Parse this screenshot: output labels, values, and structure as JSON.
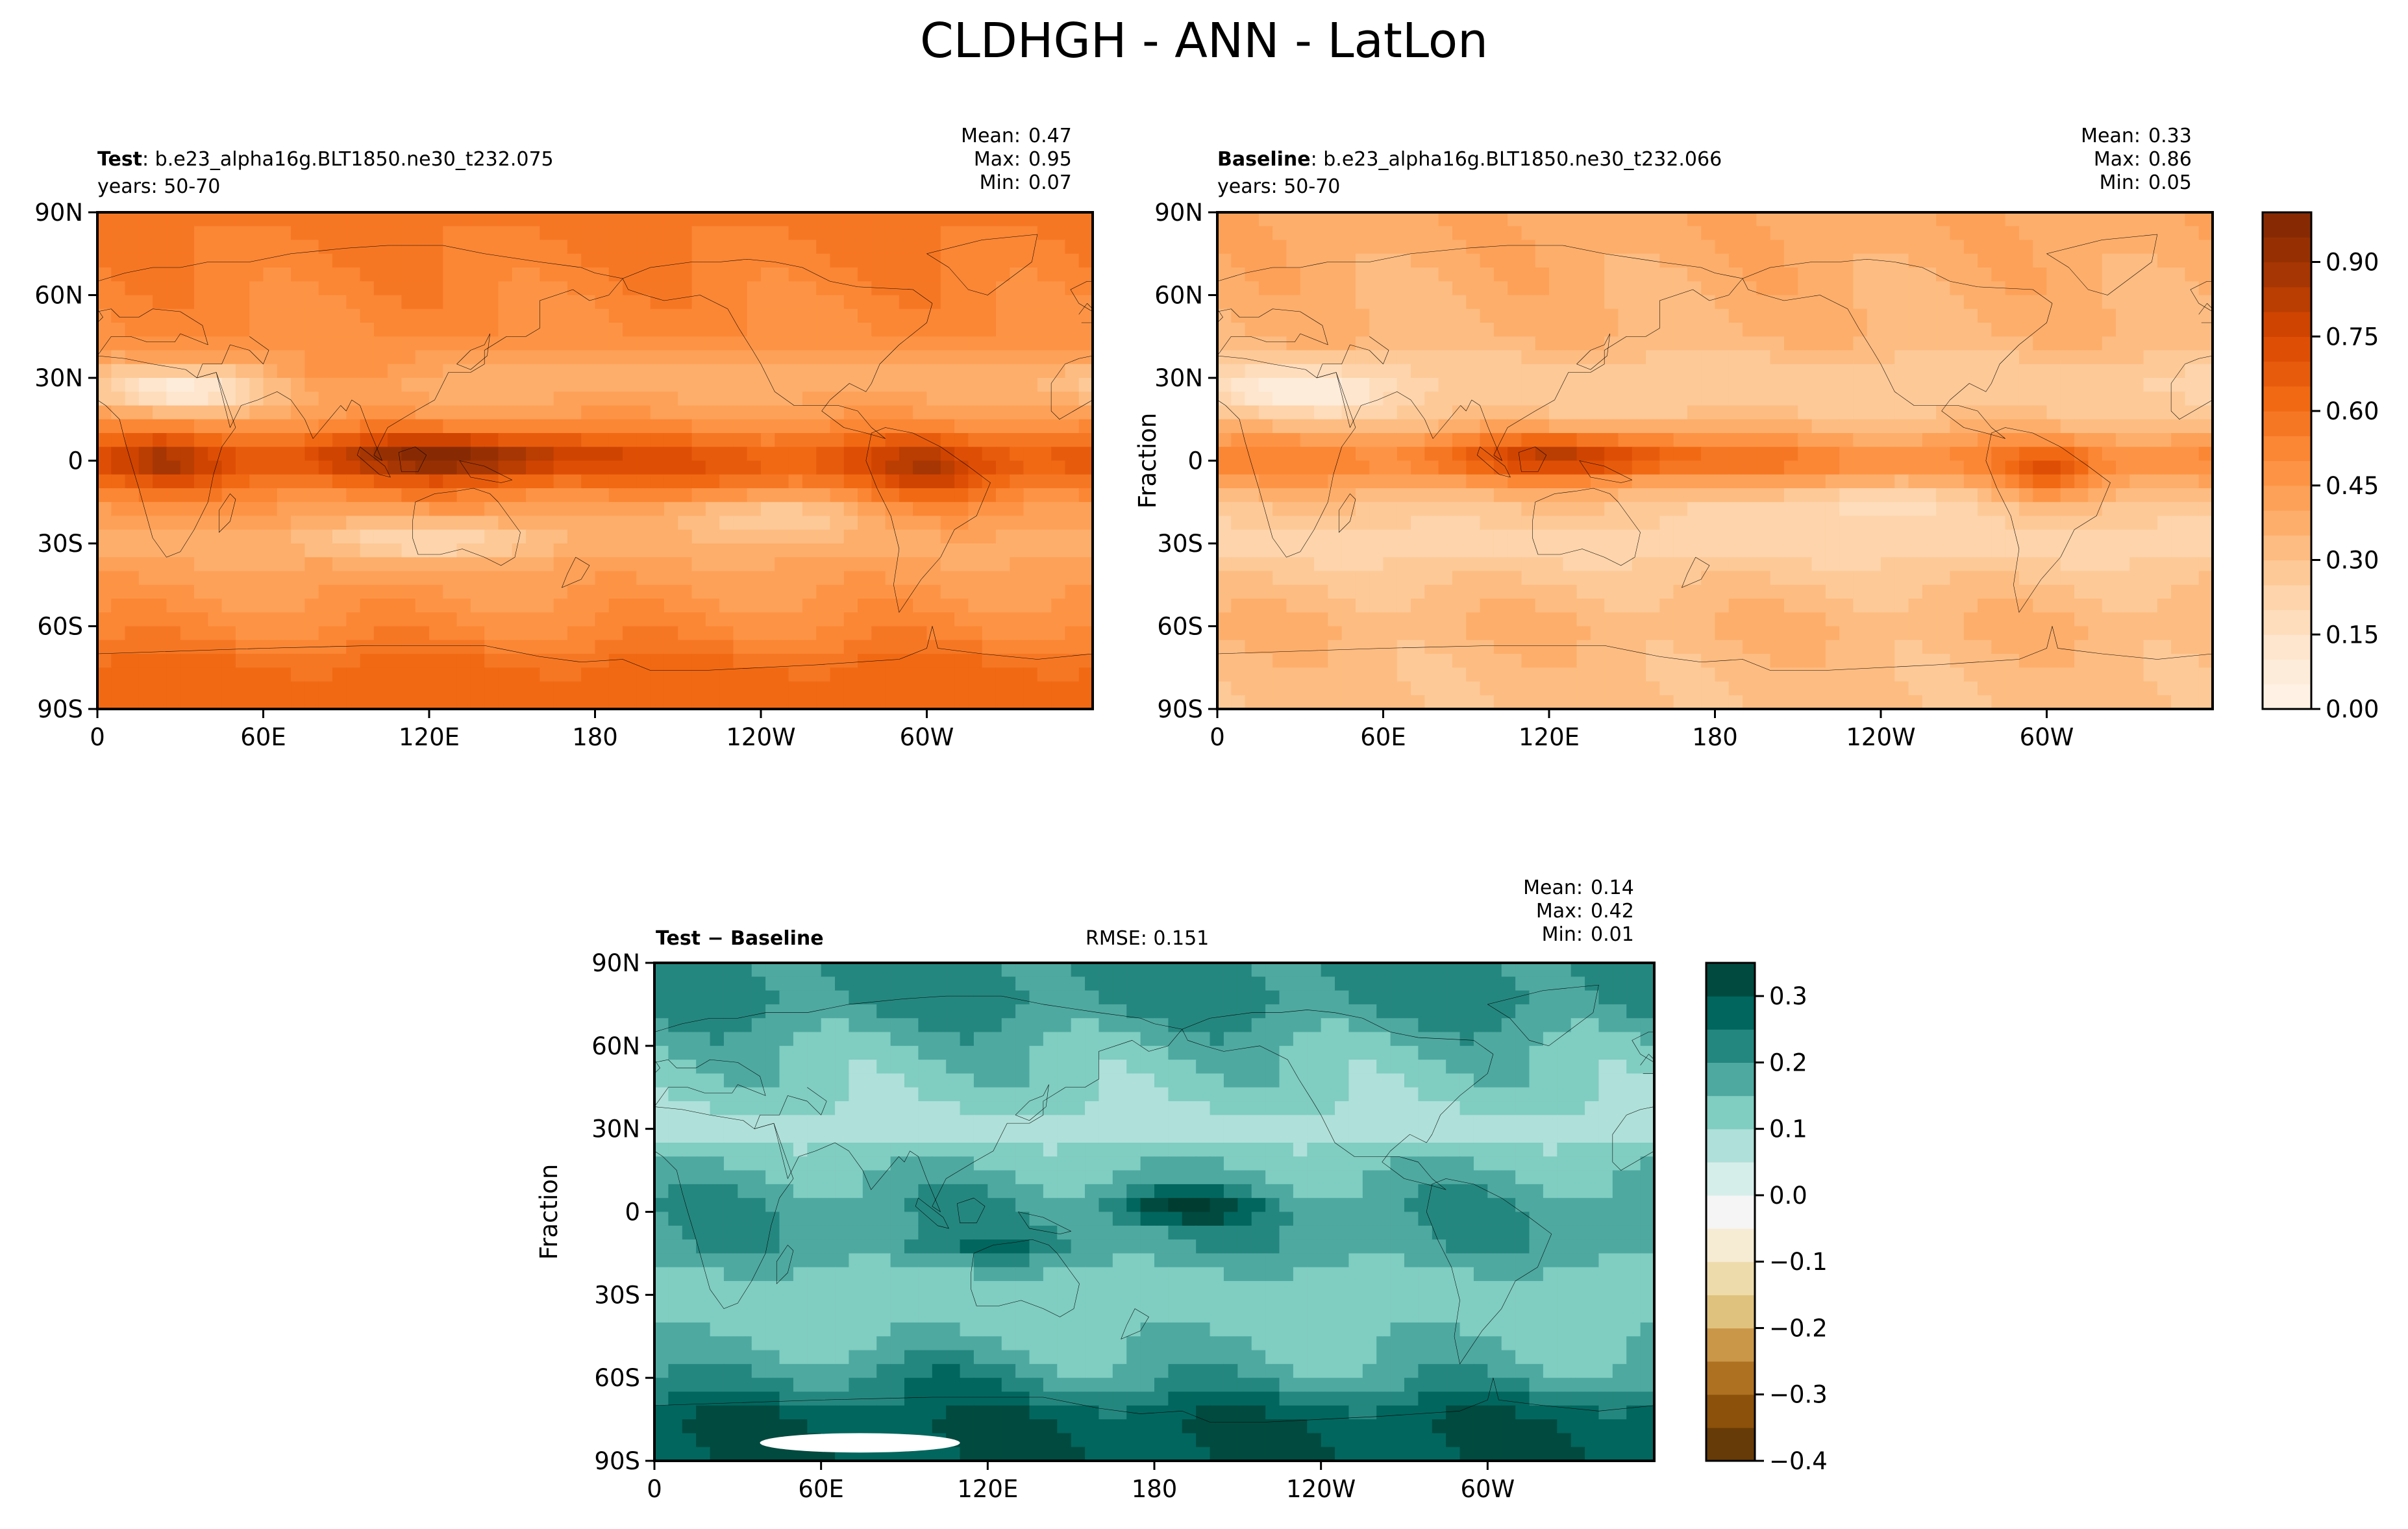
{
  "title": "CLDHGH - ANN - LatLon",
  "colors": {
    "orange_scale": [
      "#fff5eb",
      "#fee6ce",
      "#fdd0a2",
      "#fdae6b",
      "#fd8d3c",
      "#f16913",
      "#d94801",
      "#a63603",
      "#7f2704"
    ],
    "diff_scale": [
      "#543005",
      "#8c510a",
      "#bf812d",
      "#dfc27d",
      "#f6e8c3",
      "#f5f5f5",
      "#c7eae5",
      "#80cdc1",
      "#35978f",
      "#01665e",
      "#003c30"
    ],
    "land_outline": "#000000",
    "missing": "#ffffff"
  },
  "panels": {
    "test": {
      "label_bold": "Test",
      "label_rest": ": b.e23_alpha16g.BLT1850.ne30_t232.075",
      "years": "years: 50-70",
      "mean_label": "Mean:",
      "mean": "0.47",
      "max_label": "Max:",
      "max": "0.95",
      "min_label": "Min:",
      "min": "0.07"
    },
    "baseline": {
      "label_bold": "Baseline",
      "label_rest": ": b.e23_alpha16g.BLT1850.ne30_t232.066",
      "years": "years: 50-70",
      "mean_label": "Mean:",
      "mean": "0.33",
      "max_label": "Max:",
      "max": "0.86",
      "min_label": "Min:",
      "min": "0.05"
    },
    "diff": {
      "label": "Test − Baseline",
      "rmse": "RMSE: 0.151",
      "mean_label": "Mean:",
      "mean": "0.14",
      "max_label": "Max:",
      "max": "0.42",
      "min_label": "Min:",
      "min": "0.01"
    }
  },
  "chart_data": [
    {
      "type": "heatmap",
      "name": "Test",
      "x_ticks": [
        "0",
        "60E",
        "120E",
        "180",
        "120W",
        "60W"
      ],
      "y_ticks": [
        "90N",
        "60N",
        "30N",
        "0",
        "30S",
        "60S",
        "90S"
      ],
      "xlim": [
        0,
        360
      ],
      "ylim": [
        -90,
        90
      ],
      "lat_profile": [
        [
          -90,
          0.62
        ],
        [
          -75,
          0.62
        ],
        [
          -60,
          0.5
        ],
        [
          -45,
          0.44
        ],
        [
          -30,
          0.38
        ],
        [
          -15,
          0.48
        ],
        [
          0,
          0.72
        ],
        [
          15,
          0.45
        ],
        [
          30,
          0.35
        ],
        [
          45,
          0.5
        ],
        [
          60,
          0.52
        ],
        [
          75,
          0.55
        ],
        [
          90,
          0.56
        ]
      ],
      "blobs": [
        {
          "lon": 130,
          "lat": 2,
          "rlon": 45,
          "rlat": 8,
          "amp": 0.28
        },
        {
          "lon": 25,
          "lat": 0,
          "rlon": 18,
          "rlat": 10,
          "amp": 0.15
        },
        {
          "lon": 300,
          "lat": -5,
          "rlon": 20,
          "rlat": 12,
          "amp": 0.15
        },
        {
          "lon": 90,
          "lat": 32,
          "rlon": 25,
          "rlat": 6,
          "amp": 0.12
        },
        {
          "lon": 30,
          "lat": 25,
          "rlon": 30,
          "rlat": 8,
          "amp": -0.3
        },
        {
          "lon": 120,
          "lat": -28,
          "rlon": 40,
          "rlat": 8,
          "amp": -0.2
        },
        {
          "lon": 240,
          "lat": -20,
          "rlon": 40,
          "rlat": 8,
          "amp": -0.18
        }
      ]
    },
    {
      "type": "heatmap",
      "name": "Baseline",
      "x_ticks": [
        "0",
        "60E",
        "120E",
        "180",
        "120W",
        "60W"
      ],
      "y_ticks": [
        "90N",
        "60N",
        "30N",
        "0",
        "30S",
        "60S",
        "90S"
      ],
      "ylabel": "Fraction",
      "xlim": [
        0,
        360
      ],
      "ylim": [
        -90,
        90
      ],
      "lat_profile": [
        [
          -90,
          0.3
        ],
        [
          -75,
          0.32
        ],
        [
          -60,
          0.35
        ],
        [
          -45,
          0.3
        ],
        [
          -30,
          0.22
        ],
        [
          -15,
          0.3
        ],
        [
          0,
          0.55
        ],
        [
          15,
          0.3
        ],
        [
          30,
          0.25
        ],
        [
          45,
          0.35
        ],
        [
          60,
          0.36
        ],
        [
          75,
          0.38
        ],
        [
          90,
          0.4
        ]
      ],
      "blobs": [
        {
          "lon": 130,
          "lat": 2,
          "rlon": 45,
          "rlat": 8,
          "amp": 0.28
        },
        {
          "lon": 300,
          "lat": -5,
          "rlon": 15,
          "rlat": 10,
          "amp": 0.18
        },
        {
          "lon": 30,
          "lat": 25,
          "rlon": 30,
          "rlat": 8,
          "amp": -0.22
        },
        {
          "lon": 230,
          "lat": -15,
          "rlon": 40,
          "rlat": 8,
          "amp": -0.12
        }
      ]
    },
    {
      "type": "heatmap",
      "name": "Test − Baseline",
      "x_ticks": [
        "0",
        "60E",
        "120E",
        "180",
        "120W",
        "60W"
      ],
      "y_ticks": [
        "90N",
        "60N",
        "30N",
        "0",
        "30S",
        "60S",
        "90S"
      ],
      "ylabel": "Fraction",
      "xlim": [
        0,
        360
      ],
      "ylim": [
        -90,
        90
      ],
      "lat_profile": [
        [
          -90,
          0.3
        ],
        [
          -75,
          0.3
        ],
        [
          -60,
          0.18
        ],
        [
          -45,
          0.14
        ],
        [
          -30,
          0.1
        ],
        [
          -15,
          0.18
        ],
        [
          0,
          0.2
        ],
        [
          15,
          0.15
        ],
        [
          30,
          0.08
        ],
        [
          45,
          0.12
        ],
        [
          60,
          0.15
        ],
        [
          75,
          0.22
        ],
        [
          90,
          0.2
        ]
      ],
      "blobs": [
        {
          "lon": 190,
          "lat": 2,
          "rlon": 25,
          "rlat": 6,
          "amp": 0.15
        },
        {
          "lon": 120,
          "lat": -12,
          "rlon": 40,
          "rlat": 5,
          "amp": 0.05
        },
        {
          "lon": 90,
          "lat": -60,
          "rlon": 40,
          "rlat": 8,
          "amp": 0.05
        }
      ],
      "missing_region": {
        "lon_min": 38,
        "lon_max": 110,
        "lat_min": -87,
        "lat_max": -80
      }
    }
  ],
  "colorbars": [
    {
      "ticks": [
        "0.00",
        "0.15",
        "0.30",
        "0.45",
        "0.60",
        "0.75",
        "0.90"
      ],
      "vmin": 0,
      "vmax": 1.0,
      "levels": 20
    },
    {
      "ticks": [
        "0.3",
        "0.2",
        "0.1",
        "0.0",
        "−0.1",
        "−0.2",
        "−0.3",
        "−0.4"
      ],
      "vmin": -0.4,
      "vmax": 0.35,
      "levels": 15
    }
  ]
}
